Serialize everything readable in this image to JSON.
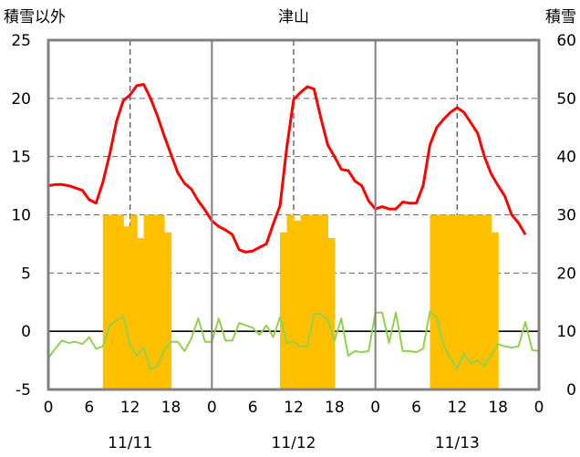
{
  "chart_data": {
    "type": "line+bar",
    "title": "津山",
    "left_axis": {
      "label": "積雪以外",
      "range": [
        -5,
        25
      ],
      "ticks": [
        25,
        20,
        15,
        10,
        5,
        0,
        -5
      ]
    },
    "right_axis": {
      "label": "積雪",
      "range": [
        0,
        60
      ],
      "ticks": [
        60,
        50,
        40,
        30,
        20,
        10,
        0
      ]
    },
    "x_axis": {
      "range": [
        0,
        72
      ],
      "ticks": [
        {
          "x": 0,
          "label": "0"
        },
        {
          "x": 6,
          "label": "6"
        },
        {
          "x": 12,
          "label": "12"
        },
        {
          "x": 18,
          "label": "18"
        },
        {
          "x": 24,
          "label": "0"
        },
        {
          "x": 30,
          "label": "6"
        },
        {
          "x": 36,
          "label": "12"
        },
        {
          "x": 42,
          "label": "18"
        },
        {
          "x": 48,
          "label": "0"
        },
        {
          "x": 54,
          "label": "6"
        },
        {
          "x": 60,
          "label": "12"
        },
        {
          "x": 66,
          "label": "18"
        },
        {
          "x": 72,
          "label": "0"
        }
      ],
      "days": [
        {
          "x": 12,
          "label": "11/11"
        },
        {
          "x": 36,
          "label": "11/12"
        },
        {
          "x": 60,
          "label": "11/13"
        }
      ]
    },
    "series": [
      {
        "name": "temperature",
        "axis": "left",
        "color": "#ff0000",
        "points": [
          [
            0,
            12.5
          ],
          [
            1,
            12.6
          ],
          [
            2,
            12.6
          ],
          [
            3,
            12.5
          ],
          [
            4,
            12.3
          ],
          [
            5,
            12.1
          ],
          [
            6,
            11.3
          ],
          [
            7,
            11.0
          ],
          [
            8,
            12.8
          ],
          [
            9,
            15.2
          ],
          [
            10,
            18.0
          ],
          [
            11,
            19.8
          ],
          [
            12,
            20.3
          ],
          [
            13,
            21.1
          ],
          [
            14,
            21.2
          ],
          [
            15,
            20.0
          ],
          [
            16,
            18.5
          ],
          [
            17,
            16.8
          ],
          [
            18,
            15.2
          ],
          [
            19,
            13.6
          ],
          [
            20,
            12.7
          ],
          [
            21,
            12.2
          ],
          [
            22,
            11.2
          ],
          [
            23,
            10.4
          ],
          [
            24,
            9.5
          ],
          [
            25,
            9.0
          ],
          [
            26,
            8.7
          ],
          [
            27,
            8.3
          ],
          [
            28,
            7.0
          ],
          [
            29,
            6.8
          ],
          [
            30,
            6.9
          ],
          [
            31,
            7.2
          ],
          [
            32,
            7.5
          ],
          [
            33,
            9.2
          ],
          [
            34,
            10.8
          ],
          [
            35,
            15.8
          ],
          [
            36,
            19.9
          ],
          [
            37,
            20.5
          ],
          [
            38,
            21.0
          ],
          [
            39,
            20.8
          ],
          [
            40,
            18.3
          ],
          [
            41,
            16.0
          ],
          [
            42,
            15.0
          ],
          [
            43,
            13.9
          ],
          [
            44,
            13.8
          ],
          [
            45,
            12.9
          ],
          [
            46,
            12.5
          ],
          [
            47,
            11.2
          ],
          [
            48,
            10.5
          ],
          [
            49,
            10.7
          ],
          [
            50,
            10.5
          ],
          [
            51,
            10.5
          ],
          [
            52,
            11.1
          ],
          [
            53,
            11.0
          ],
          [
            54,
            11.0
          ],
          [
            55,
            12.5
          ],
          [
            56,
            16.0
          ],
          [
            57,
            17.5
          ],
          [
            58,
            18.2
          ],
          [
            59,
            18.8
          ],
          [
            60,
            19.2
          ],
          [
            61,
            18.8
          ],
          [
            62,
            17.9
          ],
          [
            63,
            17.0
          ],
          [
            64,
            15.0
          ],
          [
            65,
            13.5
          ],
          [
            66,
            12.5
          ],
          [
            67,
            11.6
          ],
          [
            68,
            10.0
          ],
          [
            69,
            9.3
          ],
          [
            70,
            8.3
          ]
        ]
      },
      {
        "name": "other",
        "axis": "left",
        "color": "#92d050",
        "points": [
          [
            0,
            -2.3
          ],
          [
            1,
            -1.5
          ],
          [
            2,
            -0.8
          ],
          [
            3,
            -1.0
          ],
          [
            4,
            -0.9
          ],
          [
            5,
            -1.1
          ],
          [
            6,
            -0.5
          ],
          [
            7,
            -1.5
          ],
          [
            8,
            -1.3
          ],
          [
            9,
            0.5
          ],
          [
            10,
            0.9
          ],
          [
            11,
            1.3
          ],
          [
            12,
            -1.2
          ],
          [
            13,
            -2.1
          ],
          [
            14,
            -1.4
          ],
          [
            15,
            -3.3
          ],
          [
            16,
            -3.0
          ],
          [
            17,
            -1.6
          ],
          [
            18,
            -0.9
          ],
          [
            19,
            -0.9
          ],
          [
            20,
            -1.7
          ],
          [
            21,
            -0.6
          ],
          [
            22,
            1.1
          ],
          [
            23,
            -0.9
          ],
          [
            24,
            -0.9
          ],
          [
            25,
            1.1
          ],
          [
            26,
            -0.8
          ],
          [
            27,
            -0.8
          ],
          [
            28,
            0.7
          ],
          [
            29,
            0.5
          ],
          [
            30,
            0.3
          ],
          [
            31,
            -0.3
          ],
          [
            32,
            0.5
          ],
          [
            33,
            -0.5
          ],
          [
            34,
            1.2
          ],
          [
            35,
            -1.0
          ],
          [
            36,
            -0.9
          ],
          [
            37,
            -1.3
          ],
          [
            38,
            -1.3
          ],
          [
            39,
            1.5
          ],
          [
            40,
            1.5
          ],
          [
            41,
            1.0
          ],
          [
            42,
            -0.8
          ],
          [
            43,
            1.1
          ],
          [
            44,
            -2.1
          ],
          [
            45,
            -1.7
          ],
          [
            46,
            -1.8
          ],
          [
            47,
            -1.7
          ],
          [
            48,
            1.6
          ],
          [
            49,
            1.6
          ],
          [
            50,
            -1.0
          ],
          [
            51,
            1.6
          ],
          [
            52,
            -1.7
          ],
          [
            53,
            -1.7
          ],
          [
            54,
            -1.8
          ],
          [
            55,
            -1.5
          ],
          [
            56,
            1.7
          ],
          [
            57,
            1.2
          ],
          [
            58,
            -1.2
          ],
          [
            59,
            -2.3
          ],
          [
            60,
            -3.2
          ],
          [
            61,
            -1.9
          ],
          [
            62,
            -2.8
          ],
          [
            63,
            -2.5
          ],
          [
            64,
            -3.0
          ],
          [
            65,
            -2.0
          ],
          [
            66,
            -1.1
          ],
          [
            67,
            -1.3
          ],
          [
            68,
            -1.4
          ],
          [
            69,
            -1.3
          ],
          [
            70,
            0.8
          ],
          [
            71,
            -1.6
          ],
          [
            72,
            -1.7
          ]
        ]
      },
      {
        "name": "snow_depth",
        "axis": "right",
        "color": "#ffc000",
        "type": "bar",
        "bars": [
          [
            8,
            30
          ],
          [
            9,
            30
          ],
          [
            10,
            30
          ],
          [
            11,
            28
          ],
          [
            12,
            30
          ],
          [
            13,
            26
          ],
          [
            14,
            30
          ],
          [
            15,
            30
          ],
          [
            16,
            30
          ],
          [
            17,
            27
          ],
          [
            34,
            27
          ],
          [
            35,
            30
          ],
          [
            36,
            29
          ],
          [
            37,
            30
          ],
          [
            38,
            30
          ],
          [
            39,
            30
          ],
          [
            40,
            30
          ],
          [
            41,
            26
          ],
          [
            56,
            30
          ],
          [
            57,
            30
          ],
          [
            58,
            30
          ],
          [
            59,
            30
          ],
          [
            60,
            30
          ],
          [
            61,
            30
          ],
          [
            62,
            30
          ],
          [
            63,
            30
          ],
          [
            64,
            30
          ],
          [
            65,
            27
          ]
        ]
      }
    ]
  }
}
